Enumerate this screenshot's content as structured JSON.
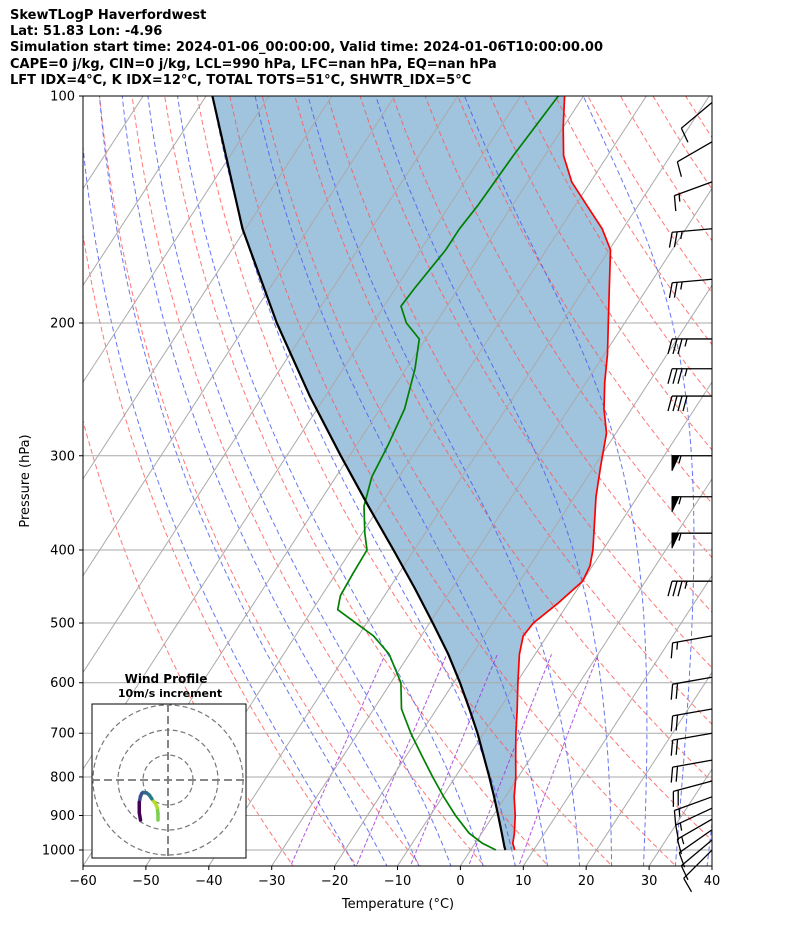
{
  "header": {
    "line1": "SkewTLogP Haverfordwest",
    "line2": "Lat: 51.83   Lon: -4.96",
    "line3": "Simulation start time: 2024-01-06_00:00:00, Valid time: 2024-01-06T10:00:00.00",
    "line4": "CAPE=0 j/kg, CIN=0 j/kg, LCL=990 hPa, LFC=nan hPa, EQ=nan hPa",
    "line5": "LFT IDX=4°C, K IDX=12°C, TOTAL TOTS=51°C, SHWTR_IDX=5°C"
  },
  "chart_data": {
    "type": "line",
    "subtype": "skew-T log-P",
    "xlabel": "Temperature (°C)",
    "ylabel": "Pressure (hPa)",
    "xlim": [
      -60,
      40
    ],
    "ylim": [
      1050,
      100
    ],
    "y_scale": "log",
    "grid": true,
    "x_ticks": [
      -60,
      -50,
      -40,
      -30,
      -20,
      -10,
      0,
      10,
      20,
      30,
      40
    ],
    "x_tick_labels": [
      "−60",
      "−50",
      "−40",
      "−30",
      "−20",
      "−10",
      "0",
      "10",
      "20",
      "30",
      "40"
    ],
    "y_ticks": [
      1000,
      900,
      800,
      700,
      600,
      500,
      400,
      300,
      200,
      100
    ],
    "y_tick_labels": [
      "1000",
      "900",
      "800",
      "700",
      "600",
      "500",
      "400",
      "300",
      "200",
      "100"
    ],
    "series": [
      {
        "key": "temperature",
        "color": "#ff0000",
        "points": [
          [
            1000,
            7
          ],
          [
            980,
            6
          ],
          [
            950,
            5.2
          ],
          [
            900,
            3.5
          ],
          [
            850,
            1.4
          ],
          [
            800,
            -0.4
          ],
          [
            750,
            -2.6
          ],
          [
            700,
            -4.9
          ],
          [
            650,
            -7.2
          ],
          [
            600,
            -9.8
          ],
          [
            550,
            -12.5
          ],
          [
            520,
            -13.8
          ],
          [
            500,
            -13.5
          ],
          [
            470,
            -11.6
          ],
          [
            440,
            -10
          ],
          [
            420,
            -10.4
          ],
          [
            400,
            -11.6
          ],
          [
            370,
            -14
          ],
          [
            340,
            -16.6
          ],
          [
            310,
            -19
          ],
          [
            280,
            -21.5
          ],
          [
            260,
            -24.4
          ],
          [
            240,
            -27
          ],
          [
            220,
            -29.5
          ],
          [
            200,
            -32.6
          ],
          [
            180,
            -36
          ],
          [
            160,
            -39.8
          ],
          [
            150,
            -43.3
          ],
          [
            140,
            -48
          ],
          [
            130,
            -53
          ],
          [
            120,
            -57
          ],
          [
            110,
            -60
          ],
          [
            100,
            -63
          ]
        ]
      },
      {
        "key": "dewpoint",
        "color": "#008000",
        "points": [
          [
            1000,
            4
          ],
          [
            980,
            1.2
          ],
          [
            950,
            -2
          ],
          [
            900,
            -6
          ],
          [
            850,
            -9.8
          ],
          [
            800,
            -13.6
          ],
          [
            750,
            -17.5
          ],
          [
            700,
            -21.6
          ],
          [
            650,
            -25.6
          ],
          [
            600,
            -28.4
          ],
          [
            550,
            -33.2
          ],
          [
            520,
            -37.6
          ],
          [
            480,
            -46
          ],
          [
            460,
            -47
          ],
          [
            430,
            -47.3
          ],
          [
            400,
            -47.5
          ],
          [
            380,
            -49.6
          ],
          [
            350,
            -52.5
          ],
          [
            320,
            -54.3
          ],
          [
            290,
            -55
          ],
          [
            260,
            -56.1
          ],
          [
            230,
            -58.6
          ],
          [
            210,
            -61
          ],
          [
            200,
            -64.7
          ],
          [
            190,
            -67.3
          ],
          [
            180,
            -67
          ],
          [
            160,
            -66
          ],
          [
            150,
            -66
          ],
          [
            140,
            -65.5
          ],
          [
            120,
            -65
          ],
          [
            100,
            -64
          ]
        ]
      },
      {
        "key": "parcel",
        "color": "#000000",
        "points": [
          [
            1000,
            5.5
          ],
          [
            990,
            5
          ],
          [
            950,
            3.2
          ],
          [
            900,
            0.8
          ],
          [
            850,
            -1.8
          ],
          [
            800,
            -4.6
          ],
          [
            750,
            -7.7
          ],
          [
            700,
            -11
          ],
          [
            650,
            -14.8
          ],
          [
            600,
            -19
          ],
          [
            550,
            -23.8
          ],
          [
            500,
            -29.5
          ],
          [
            450,
            -35.9
          ],
          [
            400,
            -43.3
          ],
          [
            350,
            -51.8
          ],
          [
            300,
            -61.4
          ],
          [
            250,
            -72.5
          ],
          [
            200,
            -85.3
          ],
          [
            150,
            -100.5
          ],
          [
            100,
            -119
          ]
        ]
      }
    ],
    "shading": {
      "between": [
        "parcel",
        "temperature"
      ],
      "color": "#a0c3de"
    },
    "reference_lines": {
      "isotherm_color": "#aaaaaa",
      "dry_adiabat_color": "#ff5555",
      "moist_adiabat_color": "#4c5ef0",
      "mixing_ratio_color": "#9b30d6"
    },
    "wind_barbs": [
      {
        "p": 1000,
        "speed_kt": 10,
        "dir": 225
      },
      {
        "p": 970,
        "speed_kt": 10,
        "dir": 230
      },
      {
        "p": 940,
        "speed_kt": 10,
        "dir": 235
      },
      {
        "p": 910,
        "speed_kt": 15,
        "dir": 240
      },
      {
        "p": 880,
        "speed_kt": 15,
        "dir": 245
      },
      {
        "p": 850,
        "speed_kt": 15,
        "dir": 250
      },
      {
        "p": 810,
        "speed_kt": 20,
        "dir": 255
      },
      {
        "p": 760,
        "speed_kt": 20,
        "dir": 260
      },
      {
        "p": 700,
        "speed_kt": 20,
        "dir": 260
      },
      {
        "p": 650,
        "speed_kt": 20,
        "dir": 260
      },
      {
        "p": 590,
        "speed_kt": 20,
        "dir": 260
      },
      {
        "p": 520,
        "speed_kt": 15,
        "dir": 260
      },
      {
        "p": 440,
        "speed_kt": 35,
        "dir": 270
      },
      {
        "p": 380,
        "speed_kt": 55,
        "dir": 270
      },
      {
        "p": 340,
        "speed_kt": 55,
        "dir": 270
      },
      {
        "p": 300,
        "speed_kt": 55,
        "dir": 270
      },
      {
        "p": 250,
        "speed_kt": 40,
        "dir": 270
      },
      {
        "p": 230,
        "speed_kt": 35,
        "dir": 270
      },
      {
        "p": 210,
        "speed_kt": 35,
        "dir": 270
      },
      {
        "p": 175,
        "speed_kt": 25,
        "dir": 265
      },
      {
        "p": 150,
        "speed_kt": 25,
        "dir": 265
      },
      {
        "p": 130,
        "speed_kt": 15,
        "dir": 250
      },
      {
        "p": 115,
        "speed_kt": 10,
        "dir": 240
      },
      {
        "p": 102,
        "speed_kt": 10,
        "dir": 230
      }
    ],
    "hodograph": {
      "title": "Wind Profile",
      "subtitle": "10m/s increment",
      "ring_interval_ms": 10,
      "path_colors": [
        "#7ad151",
        "#b5de2b",
        "#2a788e",
        "#31688e",
        "#3b528b",
        "#440154"
      ],
      "points": [
        [
          -4,
          -16
        ],
        [
          -4,
          -13.5
        ],
        [
          -4.3,
          -11
        ],
        [
          -5,
          -9.5
        ],
        [
          -6.5,
          -7.5
        ],
        [
          -7.5,
          -6
        ],
        [
          -8.5,
          -5.2
        ],
        [
          -10,
          -5
        ],
        [
          -10.5,
          -5.4
        ],
        [
          -11,
          -6.5
        ],
        [
          -11.5,
          -9
        ],
        [
          -11.5,
          -13
        ],
        [
          -11,
          -16
        ]
      ]
    }
  }
}
